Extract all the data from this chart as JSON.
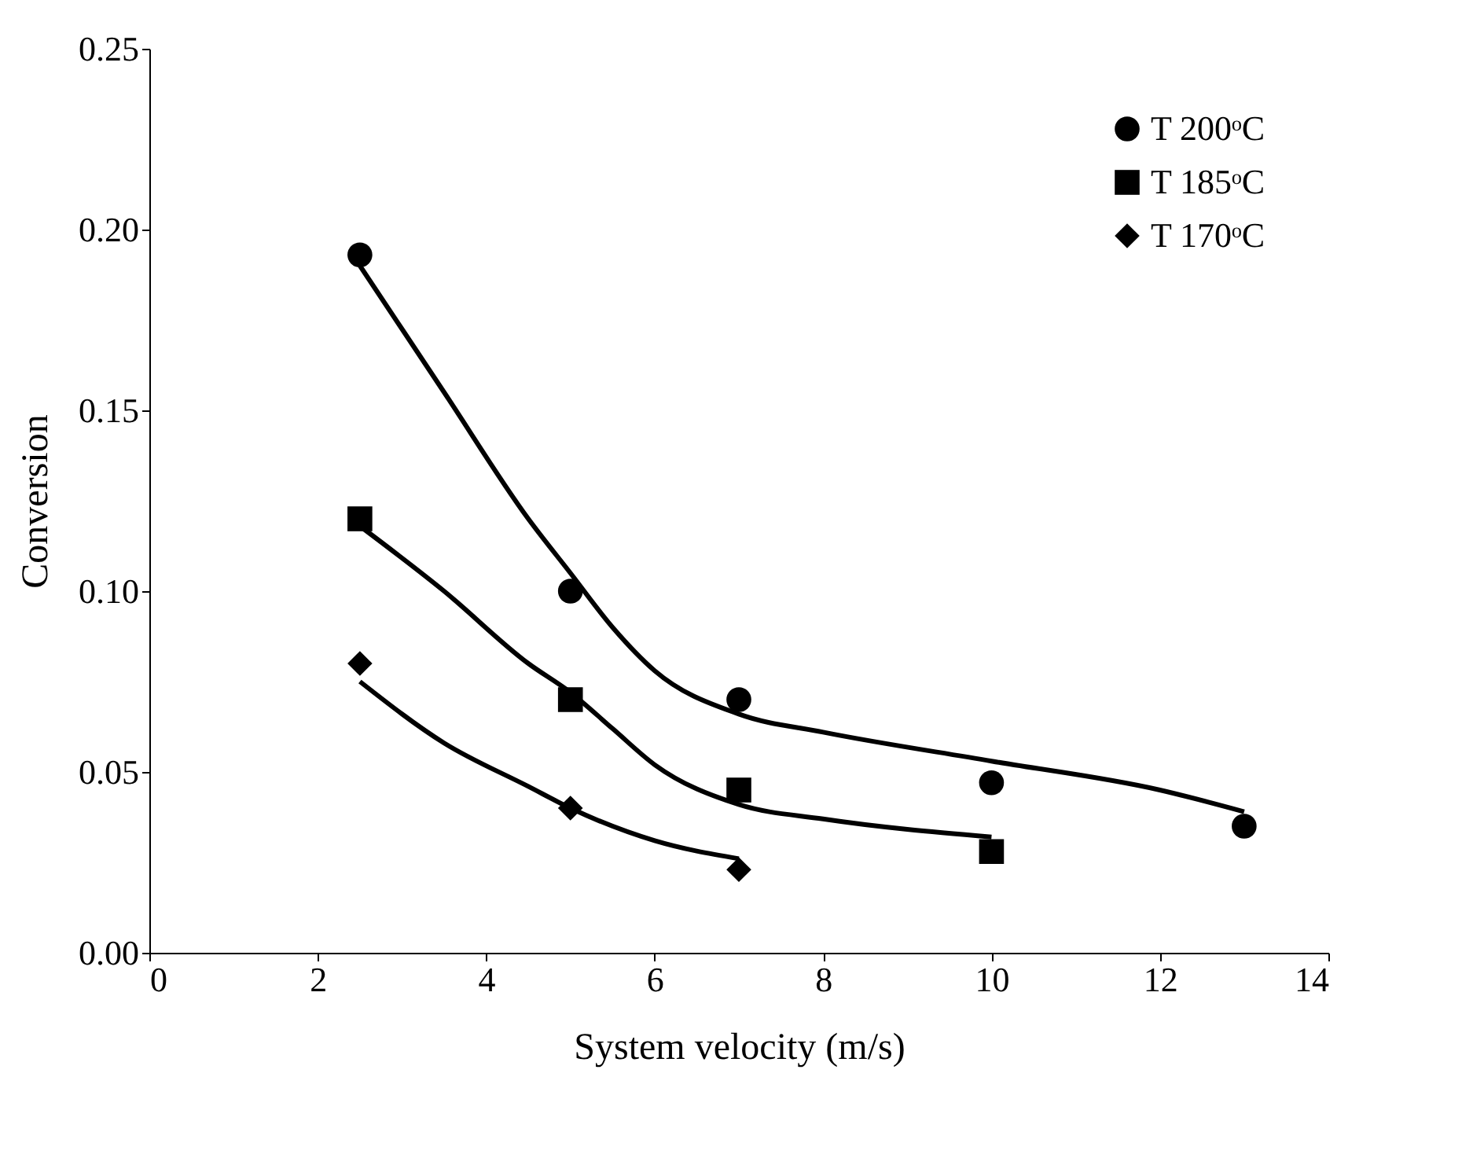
{
  "chart_data": {
    "type": "scatter",
    "xlabel": "System velocity (m/s)",
    "ylabel": "Conversion",
    "xlim": [
      0,
      14
    ],
    "xticks": [
      0,
      2,
      4,
      6,
      8,
      10,
      12,
      14
    ],
    "ylim": [
      0,
      0.25
    ],
    "yticks": [
      {
        "value": 0,
        "label": "0.00"
      },
      {
        "value": 0.05,
        "label": "0.05"
      },
      {
        "value": 0.1,
        "label": "0.10"
      },
      {
        "value": 0.15,
        "label": "0.15"
      },
      {
        "value": 0.2,
        "label": "0.20"
      },
      {
        "value": 0.25,
        "label": "0.25"
      }
    ],
    "grid": false,
    "legend": "top right",
    "series": [
      {
        "name": "T 200ᵒC",
        "color": "#000000",
        "marker": "circle",
        "x": [
          2.5,
          5,
          7,
          10,
          13
        ],
        "values": [
          0.193,
          0.1,
          0.07,
          0.047,
          0.035
        ]
      },
      {
        "name": "T 185ᵒC",
        "color": "#000000",
        "marker": "square",
        "x": [
          2.5,
          5,
          7,
          10
        ],
        "values": [
          0.12,
          0.07,
          0.045,
          0.028
        ]
      },
      {
        "name": "T 170ᵒC",
        "color": "#000000",
        "marker": "diamond",
        "x": [
          2.5,
          5,
          7
        ],
        "values": [
          0.08,
          0.04,
          0.023
        ]
      },
      {
        "type": "line",
        "color": "#000000",
        "line_style": "solid",
        "x": [
          2.5,
          3.5,
          4.5,
          5,
          5.5,
          6,
          7,
          8,
          10,
          12,
          13
        ],
        "values": [
          0.19,
          0.155,
          0.12,
          0.105,
          0.09,
          0.078,
          0.066,
          0.061,
          0.053,
          0.045,
          0.039
        ]
      },
      {
        "type": "line",
        "color": "#000000",
        "line_style": "solid",
        "x": [
          2.5,
          3.5,
          4.5,
          5,
          5.5,
          6,
          7,
          8,
          10
        ],
        "values": [
          0.118,
          0.1,
          0.08,
          0.072,
          0.062,
          0.052,
          0.041,
          0.037,
          0.032
        ]
      },
      {
        "type": "line",
        "color": "#000000",
        "line_style": "solid",
        "x": [
          2.5,
          3.5,
          4.5,
          5,
          6,
          7
        ],
        "values": [
          0.075,
          0.058,
          0.046,
          0.04,
          0.031,
          0.026
        ]
      }
    ]
  }
}
